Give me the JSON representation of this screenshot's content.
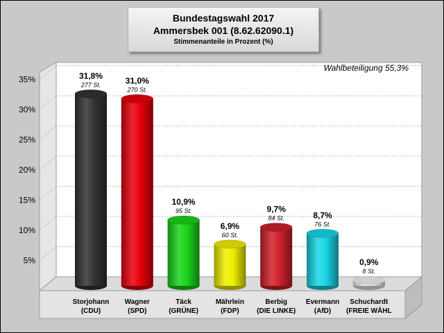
{
  "title": {
    "line1": "Bundestagswahl 2017",
    "line2": "Ammersbek 001 (8.62.62090.1)",
    "subtitle": "Stimmenanteile in Prozent (%)"
  },
  "turnout_label": "Wahlbeteiligung 55,3%",
  "colors": {
    "background": "#c9c9c9",
    "plot_back_wall": "#ffffff",
    "plot_side_wall": "#e6e6e6",
    "floor": "#dcdcdc"
  },
  "chart_data": {
    "type": "bar",
    "title": "Bundestagswahl 2017",
    "ylim": [
      0,
      35
    ],
    "yticks": [
      {
        "value": 5,
        "label": "5%"
      },
      {
        "value": 10,
        "label": "10%"
      },
      {
        "value": 15,
        "label": "15%"
      },
      {
        "value": 20,
        "label": "20%"
      },
      {
        "value": 25,
        "label": "25%"
      },
      {
        "value": 30,
        "label": "30%"
      },
      {
        "value": 35,
        "label": "35%"
      }
    ],
    "grid": true,
    "legend": "none",
    "bars": [
      {
        "line1": "Storjohann",
        "line2": "(CDU)",
        "value": 31.8,
        "value_label": "31,8%",
        "votes_label": "277 St.",
        "color": "#333333"
      },
      {
        "line1": "Wagner",
        "line2": "(SPD)",
        "value": 31.0,
        "value_label": "31,0%",
        "votes_label": "270 St.",
        "color": "#e8000b"
      },
      {
        "line1": "Täck",
        "line2": "(GRÜNE)",
        "value": 10.9,
        "value_label": "10,9%",
        "votes_label": "95 St.",
        "color": "#1bd41b"
      },
      {
        "line1": "Mährlein",
        "line2": "(FDP)",
        "value": 6.9,
        "value_label": "6,9%",
        "votes_label": "60 St.",
        "color": "#f0f000"
      },
      {
        "line1": "Berbig",
        "line2": "(DIE LINKE)",
        "value": 9.7,
        "value_label": "9,7%",
        "votes_label": "84 St.",
        "color": "#d0212b"
      },
      {
        "line1": "Evermann",
        "line2": "(AfD)",
        "value": 8.7,
        "value_label": "8,7%",
        "votes_label": "76 St.",
        "color": "#19d7e6"
      },
      {
        "line1": "Schuchardt",
        "line2": "(FREIE WÄHL",
        "value": 0.9,
        "value_label": "0,9%",
        "votes_label": "8 St.",
        "color": "#f2f2f2"
      }
    ]
  }
}
